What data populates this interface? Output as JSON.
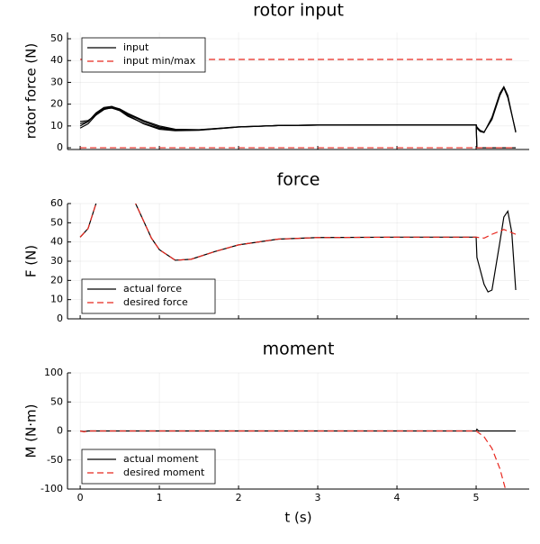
{
  "chart_data": [
    {
      "type": "line",
      "title": "rotor input",
      "ylabel": "rotor force (N)",
      "xlim": [
        -0.16,
        5.67
      ],
      "xticks": [
        0,
        1,
        2,
        3,
        4,
        5
      ],
      "ylim": [
        -0.8,
        52.9
      ],
      "yticks": [
        0,
        10,
        20,
        30,
        40,
        50
      ],
      "grid": true,
      "legend": "top-left",
      "series": [
        {
          "name": "input",
          "color": "#000000",
          "dash": false,
          "x": [
            0,
            0.1,
            0.2,
            0.3,
            0.4,
            0.5,
            0.6,
            0.8,
            1.0,
            1.2,
            1.5,
            2.0,
            2.5,
            3,
            4,
            5,
            5.01,
            5.05,
            5.1,
            5.2,
            5.3,
            5.35,
            5.4,
            5.5
          ],
          "values": [
            10,
            12,
            16,
            18.5,
            19,
            17.5,
            15,
            11,
            8.5,
            7.8,
            8,
            9.5,
            10.2,
            10.4,
            10.5,
            10.5,
            9,
            7.5,
            7,
            14,
            25,
            28,
            24,
            7
          ]
        },
        {
          "color": "#000000",
          "dash": false,
          "x": [
            0,
            0.1,
            0.2,
            0.3,
            0.4,
            0.5,
            0.6,
            0.8,
            1.0,
            1.2,
            1.5,
            2.0,
            2.5,
            3,
            4,
            5,
            5.01,
            5.05,
            5.1,
            5.2,
            5.3,
            5.35,
            5.4,
            5.5
          ],
          "values": [
            12,
            12.5,
            15,
            17.5,
            18.5,
            17.5,
            15.5,
            12,
            9.5,
            8.2,
            8.2,
            9.6,
            10.2,
            10.4,
            10.5,
            10.5,
            0,
            0,
            0,
            0,
            0,
            0,
            0,
            0
          ]
        },
        {
          "color": "#000000",
          "dash": false,
          "x": [
            0,
            0.1,
            0.2,
            0.3,
            0.4,
            0.5,
            0.6,
            0.8,
            1.0,
            1.2,
            1.5,
            2.0,
            2.5,
            3,
            4,
            5,
            5.01,
            5.05,
            5.1,
            5.2,
            5.3,
            5.35,
            5.4,
            5.5
          ],
          "values": [
            9,
            11,
            15,
            17.8,
            18.2,
            17,
            14.5,
            11.2,
            9,
            8,
            8.1,
            9.5,
            10.2,
            10.4,
            10.5,
            10.5,
            9.5,
            8,
            7.2,
            13,
            24,
            27.5,
            23,
            7.5
          ]
        },
        {
          "color": "#000000",
          "dash": false,
          "x": [
            0,
            0.1,
            0.2,
            0.3,
            0.4,
            0.5,
            0.6,
            0.8,
            1.0,
            1.2,
            1.5,
            2.0,
            2.5,
            3,
            4,
            5,
            5.01,
            5.05,
            5.1,
            5.2,
            5.3,
            5.35,
            5.4,
            5.5
          ],
          "values": [
            11,
            12,
            15.5,
            18,
            18.8,
            17.8,
            15.8,
            12.5,
            10,
            8.5,
            8.3,
            9.6,
            10.2,
            10.4,
            10.5,
            10.5,
            0,
            0,
            0,
            0,
            0,
            0,
            0,
            0
          ]
        },
        {
          "name": "input min/max",
          "color": "#e8271e",
          "dash": true,
          "x": [
            0,
            5.5
          ],
          "values": [
            40.5,
            40.5
          ]
        },
        {
          "color": "#e8271e",
          "dash": true,
          "x": [
            0,
            5.5
          ],
          "values": [
            0,
            0
          ]
        }
      ]
    },
    {
      "type": "line",
      "title": "force",
      "ylabel": "F (N)",
      "xlim": [
        -0.16,
        5.67
      ],
      "xticks": [
        0,
        1,
        2,
        3,
        4,
        5
      ],
      "ylim": [
        0,
        60
      ],
      "yticks": [
        0,
        10,
        20,
        30,
        40,
        50,
        60
      ],
      "grid": true,
      "legend": "bottom-left",
      "series": [
        {
          "name": "actual force",
          "color": "#000000",
          "dash": false,
          "x": [
            0,
            0.1,
            0.2,
            0.3,
            0.5,
            0.7,
            0.9,
            1.0,
            1.2,
            1.4,
            1.7,
            2.0,
            2.5,
            3,
            4,
            5,
            5.01,
            5.1,
            5.15,
            5.2,
            5.3,
            5.35,
            5.4,
            5.45,
            5.5
          ],
          "values": [
            42.5,
            47,
            60,
            75,
            82,
            60,
            42,
            36,
            30.5,
            31,
            35,
            38.5,
            41.5,
            42.3,
            42.5,
            42.5,
            32,
            18,
            14,
            15,
            40,
            53,
            56,
            45,
            15
          ]
        },
        {
          "name": "desired force",
          "color": "#e8271e",
          "dash": true,
          "x": [
            0,
            0.1,
            0.2,
            0.3,
            0.5,
            0.7,
            0.9,
            1.0,
            1.2,
            1.4,
            1.7,
            2.0,
            2.5,
            3,
            4,
            5,
            5.1,
            5.2,
            5.35,
            5.5
          ],
          "values": [
            42.5,
            47,
            60,
            75,
            82,
            60,
            42,
            36,
            30.5,
            31,
            35,
            38.5,
            41.5,
            42.3,
            42.5,
            42.5,
            42,
            44,
            46.5,
            44
          ]
        }
      ]
    },
    {
      "type": "line",
      "title": "moment",
      "ylabel": "M (N·m)",
      "xlabel": "t (s)",
      "xlim": [
        -0.16,
        5.67
      ],
      "xticks": [
        0,
        1,
        2,
        3,
        4,
        5
      ],
      "ylim": [
        -100,
        100
      ],
      "yticks": [
        -100,
        -50,
        0,
        50,
        100
      ],
      "grid": true,
      "legend": "bottom-left",
      "series": [
        {
          "name": "actual moment",
          "color": "#000000",
          "dash": false,
          "x": [
            0,
            0.05,
            0.1,
            0.5,
            1,
            2,
            3,
            4,
            5,
            5.01,
            5.03,
            5.1,
            5.5
          ],
          "values": [
            0,
            -1,
            0,
            0,
            0,
            0,
            0,
            0,
            0,
            3,
            0,
            0,
            0
          ]
        },
        {
          "name": "desired moment",
          "color": "#e8271e",
          "dash": true,
          "x": [
            0,
            0.05,
            0.1,
            0.5,
            1,
            2,
            3,
            4,
            5,
            5.1,
            5.2,
            5.3,
            5.37
          ],
          "values": [
            0,
            -1.5,
            0,
            0,
            0,
            0,
            0,
            0,
            0,
            -10,
            -30,
            -65,
            -100
          ]
        }
      ]
    }
  ]
}
